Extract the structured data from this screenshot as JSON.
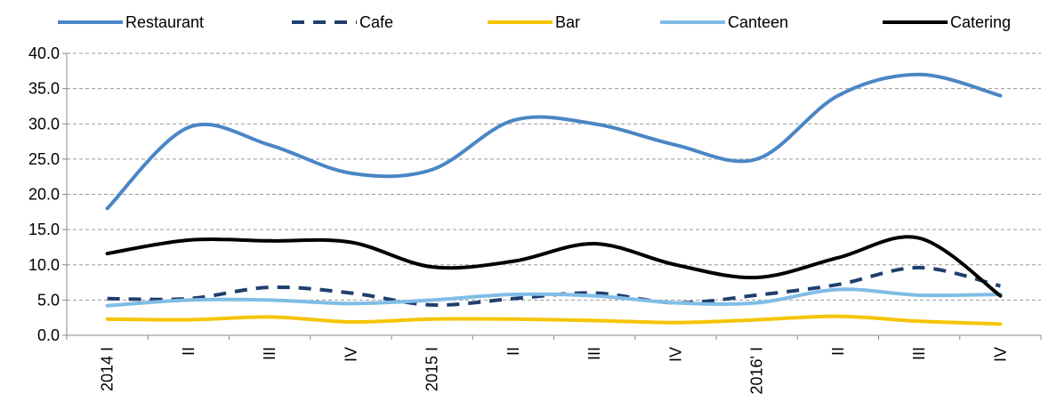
{
  "chart_data": {
    "type": "line",
    "categories": [
      "2014 I",
      "II",
      "III",
      "IV",
      "2015 I",
      "II",
      "III",
      "IV",
      "2016' I",
      "II",
      "III",
      "IV"
    ],
    "series": [
      {
        "name": "Restaurant",
        "color": "#4a86c5",
        "dash": false,
        "values": [
          18,
          29.5,
          27,
          23,
          23.5,
          30.5,
          30,
          27,
          25,
          34,
          37,
          34
        ]
      },
      {
        "name": "Cafe",
        "color": "#1f3f6e",
        "dash": true,
        "values": [
          5.2,
          5.2,
          6.8,
          6,
          4.3,
          5.2,
          6,
          4.6,
          5.7,
          7.2,
          9.6,
          7
        ]
      },
      {
        "name": "Bar",
        "color": "#f5c400",
        "dash": false,
        "values": [
          2.3,
          2.2,
          2.6,
          1.9,
          2.3,
          2.3,
          2.1,
          1.8,
          2.2,
          2.7,
          2,
          1.6
        ]
      },
      {
        "name": "Canteen",
        "color": "#7fbde6",
        "dash": false,
        "values": [
          4.2,
          5,
          5,
          4.5,
          5,
          5.8,
          5.6,
          4.6,
          4.6,
          6.5,
          5.7,
          5.8
        ]
      },
      {
        "name": "Catering",
        "color": "#000000",
        "dash": false,
        "values": [
          11.6,
          13.5,
          13.4,
          13.2,
          9.7,
          10.5,
          13,
          10,
          8.2,
          11,
          13.8,
          5.6
        ]
      }
    ],
    "ylim": [
      0,
      40
    ],
    "yticks": [
      {
        "value": 0,
        "label": "0.0"
      },
      {
        "value": 5,
        "label": "5.0"
      },
      {
        "value": 10,
        "label": "10.0"
      },
      {
        "value": 15,
        "label": "15.0"
      },
      {
        "value": 20,
        "label": "20.0"
      },
      {
        "value": 25,
        "label": "25.0"
      },
      {
        "value": 30,
        "label": "30.0"
      },
      {
        "value": 35,
        "label": "35.0"
      },
      {
        "value": 40,
        "label": "40.0"
      }
    ],
    "grid": true,
    "legend": "top"
  }
}
